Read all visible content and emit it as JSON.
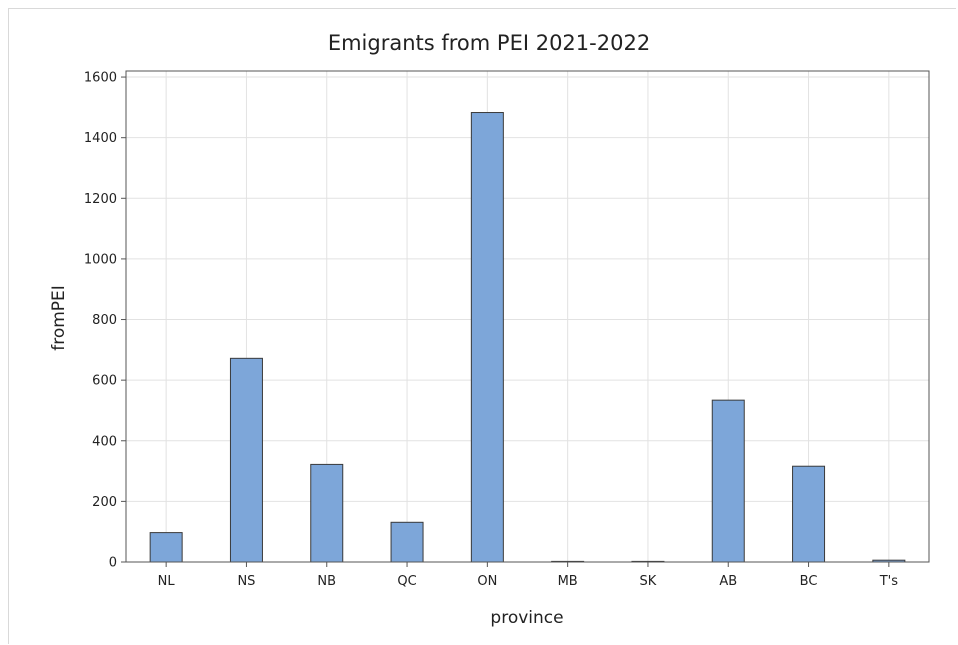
{
  "chart_data": {
    "type": "bar",
    "title": "Emigrants from PEI 2021-2022",
    "xlabel": "province",
    "ylabel": "fromPEI",
    "categories": [
      "NL",
      "NS",
      "NB",
      "QC",
      "ON",
      "MB",
      "SK",
      "AB",
      "BC",
      "T's"
    ],
    "values": [
      97,
      672,
      322,
      131,
      1483,
      2,
      2,
      534,
      316,
      6
    ],
    "ylim": [
      0,
      1620
    ],
    "yticks": [
      0,
      200,
      400,
      600,
      800,
      1000,
      1200,
      1400,
      1600
    ],
    "grid": true,
    "legend": "none",
    "bar_color": "#7da6d9",
    "bar_edge_color": "#3a3a3a",
    "grid_color": "#e2e2e2"
  }
}
